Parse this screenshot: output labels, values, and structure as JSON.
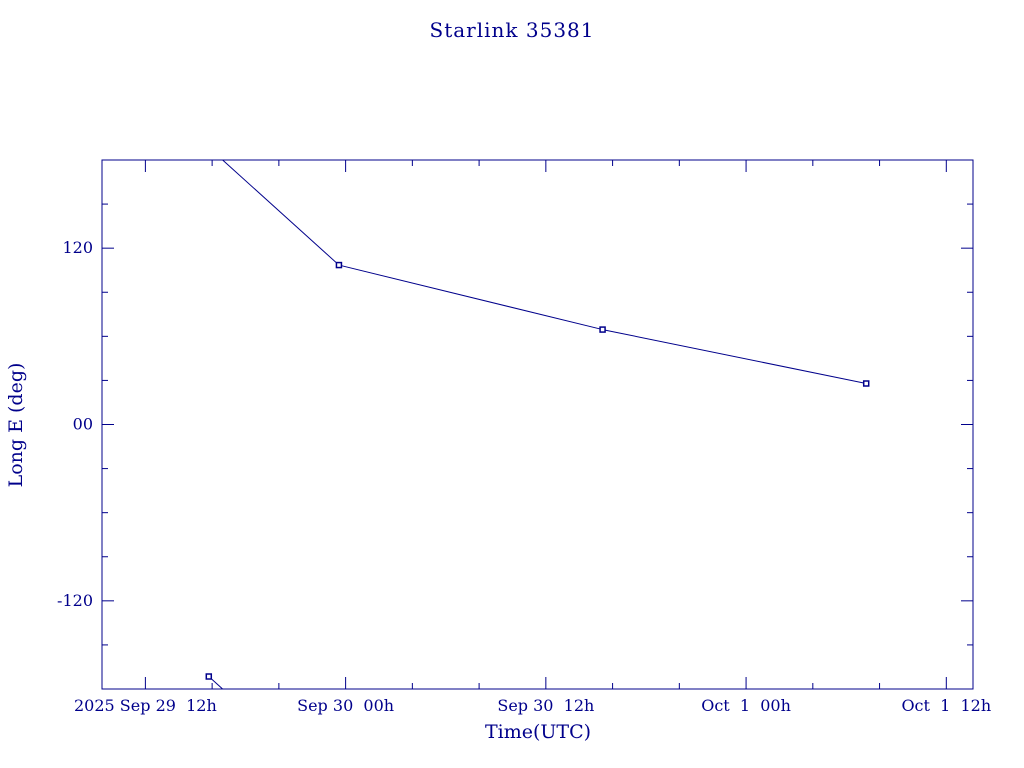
{
  "chart_data": {
    "type": "line",
    "title": "Starlink 35381",
    "xlabel": "Time(UTC)",
    "ylabel": "Long E (deg)",
    "color": "#00008b",
    "xunit": "hours since 2025 Sep 29 00h (UTC)",
    "xlim": [
      9.4,
      61.6
    ],
    "ylim": [
      -180,
      180
    ],
    "grid": false,
    "x_ticks": [
      {
        "x": 12,
        "label": "2025 Sep 29  12h"
      },
      {
        "x": 24,
        "label": "Sep 30  00h"
      },
      {
        "x": 36,
        "label": "Sep 30  12h"
      },
      {
        "x": 48,
        "label": "Oct  1  00h"
      },
      {
        "x": 60,
        "label": "Oct  1  12h"
      }
    ],
    "y_ticks": [
      {
        "y": 120,
        "label": "120"
      },
      {
        "y": 0,
        "label": "00"
      },
      {
        "y": -120,
        "label": "-120"
      }
    ],
    "series": [
      {
        "points": [
          {
            "x": 15.8,
            "y": -171.5
          },
          {
            "x": 23.6,
            "y": 108.5
          },
          {
            "x": 39.4,
            "y": 64.6
          },
          {
            "x": 55.2,
            "y": 27.9
          }
        ]
      }
    ]
  }
}
